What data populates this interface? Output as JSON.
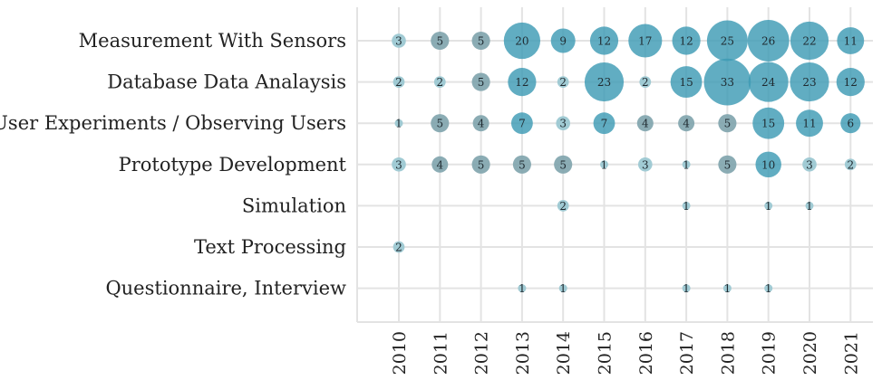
{
  "chart_data": {
    "type": "bubble",
    "title": "",
    "xlabel": "",
    "ylabel": "",
    "x": [
      "2010",
      "2011",
      "2012",
      "2013",
      "2014",
      "2015",
      "2016",
      "2017",
      "2018",
      "2019",
      "2020",
      "2021"
    ],
    "categories": [
      "Measurement With Sensors",
      "Database Data Analaysis",
      "User Experiments / Observing Users",
      "Prototype Development",
      "Simulation",
      "Text Processing",
      "Questionnaire, Interview"
    ],
    "values": [
      [
        3,
        5,
        5,
        20,
        9,
        12,
        17,
        12,
        25,
        26,
        22,
        11
      ],
      [
        2,
        2,
        5,
        12,
        2,
        23,
        2,
        15,
        33,
        24,
        23,
        12
      ],
      [
        1,
        5,
        4,
        7,
        3,
        7,
        4,
        4,
        5,
        15,
        11,
        6
      ],
      [
        3,
        4,
        5,
        5,
        5,
        1,
        3,
        1,
        5,
        10,
        3,
        2
      ],
      [
        null,
        null,
        null,
        null,
        2,
        null,
        null,
        1,
        null,
        1,
        1,
        null
      ],
      [
        2,
        null,
        null,
        null,
        null,
        null,
        null,
        null,
        null,
        null,
        null,
        null
      ],
      [
        null,
        null,
        null,
        1,
        1,
        null,
        null,
        1,
        1,
        1,
        null,
        null
      ]
    ],
    "colors": {
      "low": "#9cc8d2",
      "mid": "#7ea3ac",
      "high": "#3e9bb5",
      "grid": "#e3e3e3",
      "background": "#ffffff"
    },
    "grid": true
  }
}
